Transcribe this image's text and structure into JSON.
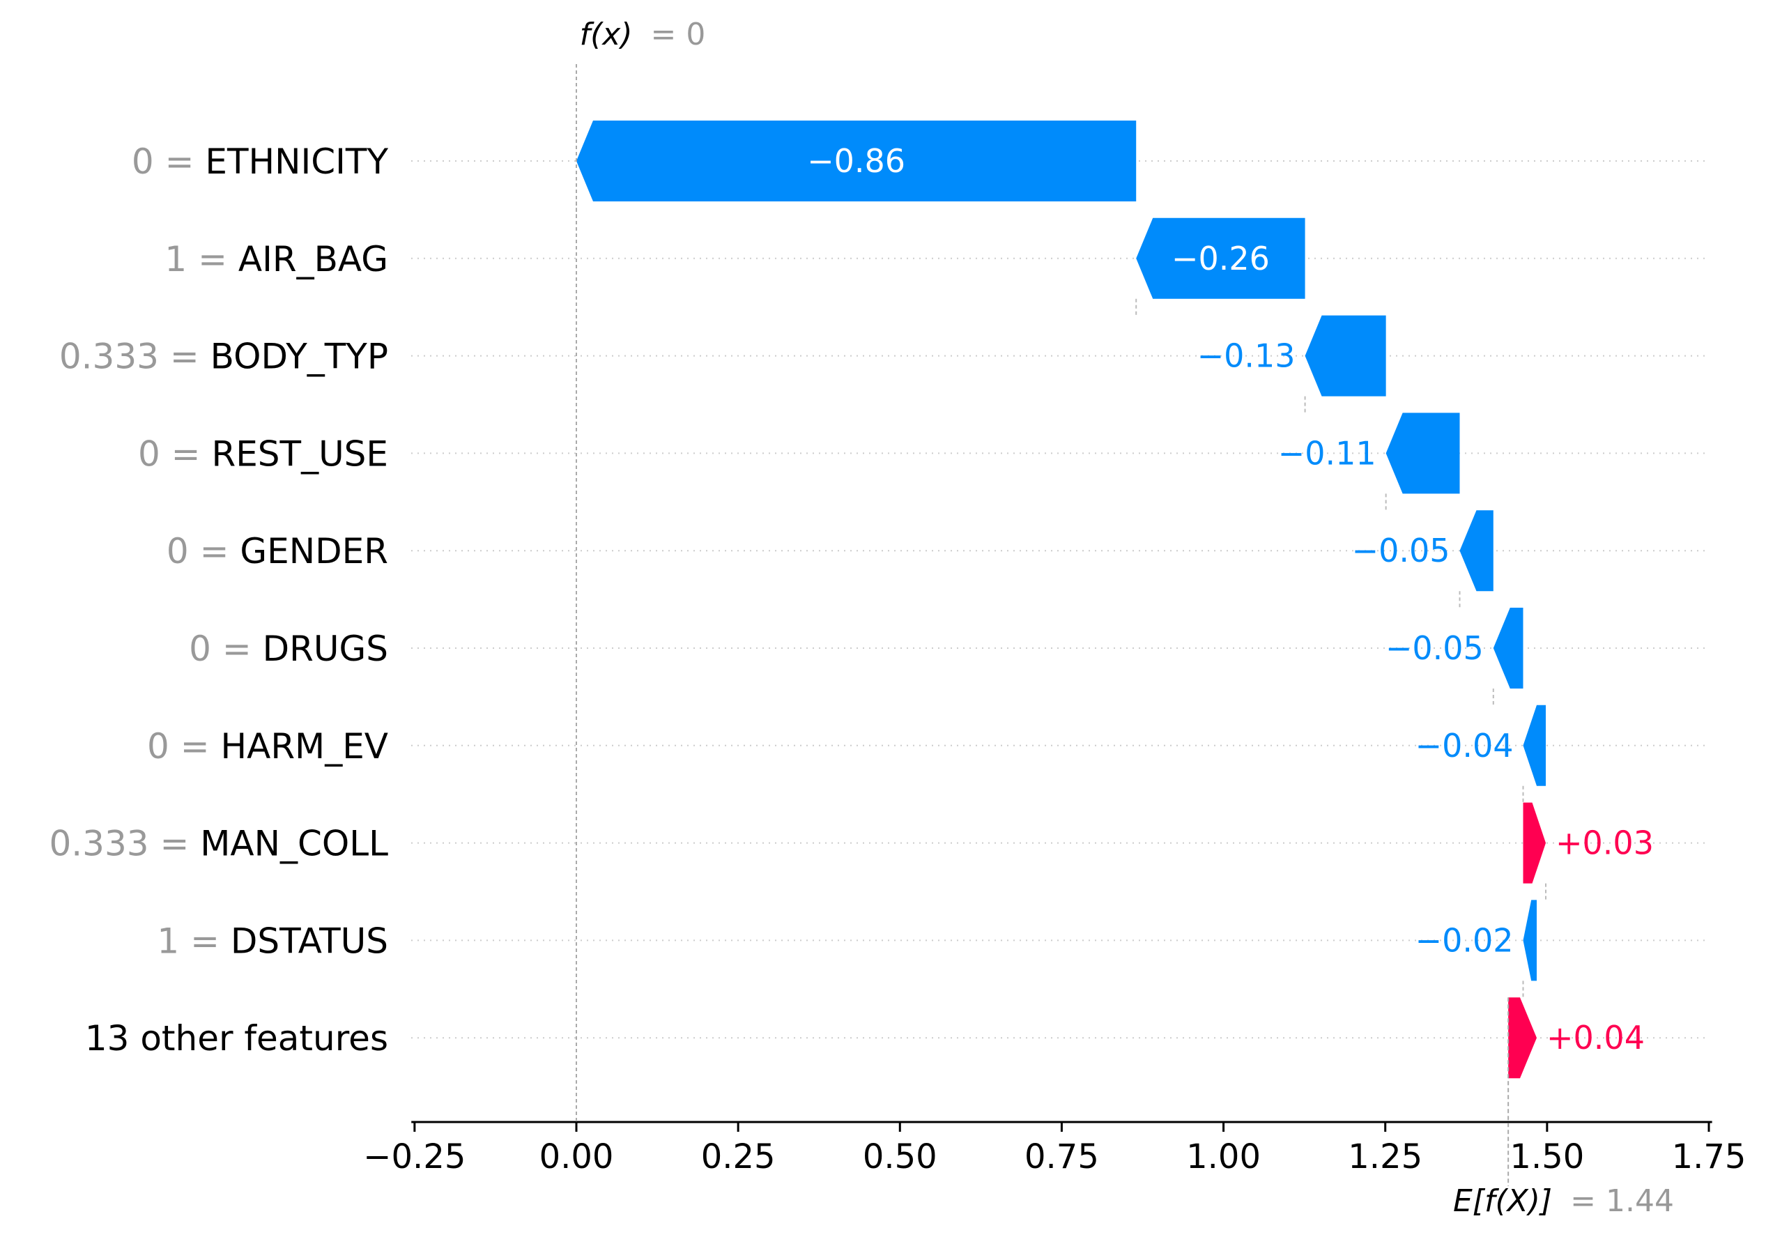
{
  "chart_data": {
    "type": "waterfall",
    "title": "",
    "xlabel": "",
    "ylabel": "",
    "xlim": [
      -0.26,
      1.755
    ],
    "x_ticks": [
      -0.25,
      0.0,
      0.25,
      0.5,
      0.75,
      1.0,
      1.25,
      1.5,
      1.75
    ],
    "x_tick_labels": [
      "−0.25",
      "0.00",
      "0.25",
      "0.50",
      "0.75",
      "1.00",
      "1.25",
      "1.50",
      "1.75"
    ],
    "fx": {
      "label": "f(x)",
      "value_label": "= 0",
      "value": 0.0
    },
    "efx": {
      "label": "E[f(X)]",
      "value_label": "= 1.44",
      "value": 1.44
    },
    "features": [
      {
        "value": "0",
        "name": "ETHNICITY",
        "contribution": -0.86,
        "label": "−0.86",
        "start": 0.865,
        "end": 0.0
      },
      {
        "value": "1",
        "name": "AIR_BAG",
        "contribution": -0.26,
        "label": "−0.26",
        "start": 1.126,
        "end": 0.865
      },
      {
        "value": "0.333",
        "name": "BODY_TYP",
        "contribution": -0.13,
        "label": "−0.13",
        "start": 1.251,
        "end": 1.126
      },
      {
        "value": "0",
        "name": "REST_USE",
        "contribution": -0.11,
        "label": "−0.11",
        "start": 1.365,
        "end": 1.251
      },
      {
        "value": "0",
        "name": "GENDER",
        "contribution": -0.05,
        "label": "−0.05",
        "start": 1.417,
        "end": 1.365
      },
      {
        "value": "0",
        "name": "DRUGS",
        "contribution": -0.05,
        "label": "−0.05",
        "start": 1.463,
        "end": 1.417
      },
      {
        "value": "0",
        "name": "HARM_EV",
        "contribution": -0.04,
        "label": "−0.04",
        "start": 1.498,
        "end": 1.463
      },
      {
        "value": "0.333",
        "name": "MAN_COLL",
        "contribution": 0.03,
        "label": "+0.03",
        "start": 1.463,
        "end": 1.498
      },
      {
        "value": "1",
        "name": "DSTATUS",
        "contribution": -0.02,
        "label": "−0.02",
        "start": 1.484,
        "end": 1.463
      },
      {
        "value": "",
        "name": "13 other features",
        "contribution": 0.04,
        "label": "+0.04",
        "start": 1.44,
        "end": 1.484
      }
    ],
    "grid": "dotted horizontal lines per feature row",
    "colors": {
      "negative": "#008bfb",
      "positive": "#ff0051",
      "value_text": "#999999",
      "text": "#000000",
      "guide": "#bbbbbb"
    }
  }
}
